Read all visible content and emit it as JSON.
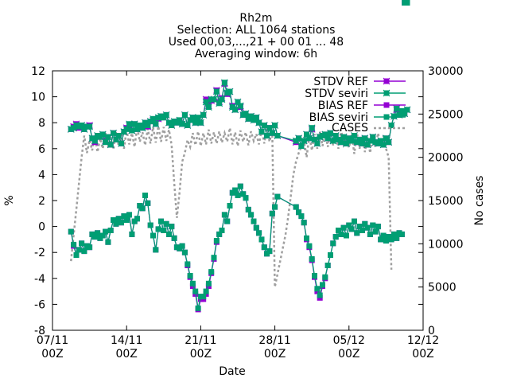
{
  "chart_data": {
    "type": "line",
    "title_lines": [
      "Rh2m",
      "Selection: ALL   1064 stations",
      "Used 00,03,...,21 + 00 01 ... 48",
      "Averaging window:  6h"
    ],
    "xlabel": "Date",
    "ylabel": "%",
    "y2label": "No cases",
    "xlim": [
      0,
      35
    ],
    "ylim": [
      -8,
      12
    ],
    "y2lim": [
      0,
      30000
    ],
    "x_ticks": [
      {
        "x": 0,
        "line1": "07/11",
        "line2": "00Z"
      },
      {
        "x": 7,
        "line1": "14/11",
        "line2": "00Z"
      },
      {
        "x": 14,
        "line1": "21/11",
        "line2": "00Z"
      },
      {
        "x": 21,
        "line1": "28/11",
        "line2": "00Z"
      },
      {
        "x": 28,
        "line1": "05/12",
        "line2": "00Z"
      },
      {
        "x": 35,
        "line1": "12/12",
        "line2": "00Z"
      }
    ],
    "y_ticks": [
      12,
      10,
      8,
      6,
      4,
      2,
      0,
      -2,
      -4,
      -6,
      -8
    ],
    "y2_ticks": [
      30000,
      25000,
      20000,
      15000,
      10000,
      5000,
      0
    ],
    "legend_position": "top-right",
    "colors": {
      "ref": "#9400d3",
      "seviri": "#009e73",
      "cases": "#a0a0a0"
    },
    "stdv_x": [
      1.75,
      2.0,
      2.25,
      2.5,
      2.75,
      3.0,
      3.25,
      3.5,
      3.75,
      4.0,
      4.25,
      4.5,
      4.75,
      5.0,
      5.25,
      5.5,
      5.75,
      6.0,
      6.25,
      6.5,
      6.75,
      7.0,
      7.25,
      7.5,
      7.75,
      8.0,
      8.25,
      8.5,
      8.75,
      9.0,
      9.25,
      9.5,
      9.75,
      10.0,
      10.25,
      10.5,
      10.75,
      11.0,
      11.25,
      11.5,
      11.75,
      12.0,
      12.25,
      12.5,
      12.75,
      13.0,
      13.25,
      13.5,
      13.75,
      14.0,
      14.25,
      14.5,
      14.75,
      15.0,
      15.25,
      15.5,
      15.75,
      16.0,
      16.25,
      16.5,
      16.75,
      17.0,
      17.25,
      17.5,
      17.75,
      18.0,
      18.25,
      18.5,
      18.75,
      19.0,
      19.25,
      19.5,
      19.75,
      20.0,
      20.25,
      20.5,
      20.75,
      21.0,
      21.25,
      23.0,
      23.25,
      23.5,
      23.75,
      24.0,
      24.25,
      24.5,
      24.75,
      25.0,
      25.25,
      25.5,
      25.75,
      26.0,
      26.25,
      26.5,
      26.75,
      27.0,
      27.25,
      27.5,
      27.75,
      28.0,
      28.25,
      28.5,
      28.75,
      29.0,
      29.25,
      29.5,
      29.75,
      30.0,
      30.25,
      30.5,
      30.75,
      31.0,
      31.25,
      31.5,
      31.75,
      32.0,
      32.25,
      32.5,
      32.75,
      33.0,
      33.25,
      33.5
    ],
    "stdv_ref": [
      7.5,
      7.7,
      7.9,
      7.6,
      7.8,
      7.5,
      7.7,
      7.8,
      6.8,
      6.5,
      7.0,
      6.9,
      7.1,
      6.6,
      6.9,
      6.3,
      7.2,
      6.7,
      7.0,
      6.4,
      7.3,
      7.6,
      7.8,
      7.4,
      7.9,
      7.5,
      7.8,
      7.6,
      8.0,
      7.7,
      8.1,
      8.2,
      7.9,
      8.3,
      8.5,
      8.4,
      8.6,
      8.0,
      7.8,
      8.1,
      8.0,
      8.1,
      7.9,
      8.6,
      7.8,
      8.2,
      8.4,
      8.0,
      8.3,
      8.0,
      8.6,
      9.8,
      9.3,
      9.7,
      9.8,
      10.5,
      9.6,
      9.9,
      11.0,
      10.2,
      10.4,
      9.3,
      9.0,
      9.6,
      9.2,
      8.6,
      8.7,
      8.3,
      8.5,
      8.2,
      8.4,
      8.0,
      7.3,
      7.8,
      7.0,
      7.6,
      7.2,
      7.8,
      7.0,
      6.5,
      6.8,
      6.2,
      6.6,
      7.1,
      6.8,
      7.5,
      6.7,
      6.4,
      6.9,
      7.0,
      7.1,
      6.8,
      7.2,
      6.6,
      7.0,
      6.7,
      6.5,
      6.9,
      6.4,
      6.8,
      6.6,
      7.0,
      6.5,
      6.7,
      6.4,
      6.8,
      6.3,
      6.6,
      6.9,
      6.5,
      6.4,
      6.6,
      6.3,
      6.8,
      6.5,
      7.8,
      8.5,
      9.0,
      8.6,
      8.9,
      8.7,
      9.0,
      8.8,
      9.0
    ],
    "stdv_seviri": [
      7.5,
      7.6,
      7.8,
      7.7,
      7.8,
      7.5,
      7.7,
      7.7,
      6.8,
      6.6,
      7.0,
      6.9,
      7.1,
      6.5,
      6.9,
      6.3,
      7.2,
      6.7,
      7.0,
      6.4,
      7.3,
      7.5,
      7.9,
      7.4,
      7.9,
      7.5,
      7.8,
      7.6,
      8.0,
      7.8,
      8.1,
      8.3,
      7.9,
      8.4,
      8.5,
      8.4,
      8.6,
      8.0,
      7.8,
      8.1,
      8.0,
      8.2,
      7.9,
      8.6,
      7.8,
      8.2,
      8.4,
      8.0,
      8.4,
      8.0,
      8.6,
      9.6,
      9.2,
      9.8,
      9.8,
      10.4,
      9.5,
      9.8,
      11.1,
      10.3,
      10.4,
      9.2,
      9.0,
      9.6,
      9.3,
      8.6,
      8.7,
      8.3,
      8.5,
      8.2,
      8.4,
      8.0,
      7.3,
      7.8,
      7.0,
      7.6,
      7.2,
      7.8,
      7.0,
      6.6,
      6.8,
      6.2,
      6.6,
      7.1,
      6.8,
      7.6,
      6.7,
      6.4,
      6.9,
      7.0,
      7.1,
      6.8,
      7.2,
      6.6,
      7.0,
      6.7,
      6.5,
      6.9,
      6.4,
      6.8,
      6.6,
      7.0,
      6.5,
      6.7,
      6.4,
      6.8,
      6.3,
      6.6,
      6.9,
      6.5,
      6.4,
      6.6,
      6.3,
      6.8,
      6.5,
      7.8,
      8.5,
      9.1,
      8.6,
      8.9,
      8.7,
      9.0,
      8.8,
      9.1
    ],
    "bias_x": [
      1.75,
      2.0,
      2.25,
      2.5,
      2.75,
      3.0,
      3.25,
      3.5,
      3.75,
      4.0,
      4.25,
      4.5,
      4.75,
      5.0,
      5.25,
      5.5,
      5.75,
      6.0,
      6.25,
      6.5,
      6.75,
      7.0,
      7.25,
      7.5,
      7.75,
      8.0,
      8.25,
      8.5,
      8.75,
      9.0,
      9.25,
      9.5,
      9.75,
      10.0,
      10.25,
      10.5,
      10.75,
      11.0,
      11.25,
      11.5,
      11.75,
      12.0,
      12.25,
      12.5,
      12.75,
      13.0,
      13.25,
      13.5,
      13.75,
      14.0,
      14.25,
      14.5,
      14.75,
      15.0,
      15.25,
      15.5,
      15.75,
      16.0,
      16.25,
      16.5,
      16.75,
      17.0,
      17.25,
      17.5,
      17.75,
      18.0,
      18.25,
      18.5,
      18.75,
      19.0,
      19.25,
      19.5,
      19.75,
      20.0,
      20.25,
      20.5,
      20.75,
      21.0,
      21.25,
      23.0,
      23.25,
      23.5,
      23.75,
      24.0,
      24.25,
      24.5,
      24.75,
      25.0,
      25.25,
      25.5,
      25.75,
      26.0,
      26.25,
      26.5,
      26.75,
      27.0,
      27.25,
      27.5,
      27.75,
      28.0,
      28.25,
      28.5,
      28.75,
      29.0,
      29.25,
      29.5,
      29.75,
      30.0,
      30.25,
      30.5,
      30.75,
      31.0,
      31.25,
      31.5,
      31.75,
      32.0,
      32.25,
      32.5,
      32.75,
      33.0,
      33.25,
      33.5
    ],
    "bias_ref": [
      -0.4,
      -1.5,
      -2.2,
      -1.8,
      -1.3,
      -1.9,
      -1.5,
      -1.6,
      -0.6,
      -0.8,
      -0.5,
      -0.9,
      -0.7,
      -0.4,
      -1.2,
      -0.3,
      0.5,
      0.2,
      0.6,
      0.3,
      0.8,
      0.5,
      0.9,
      -0.6,
      0.4,
      0.6,
      1.6,
      1.4,
      2.4,
      1.8,
      0.1,
      -0.7,
      -1.8,
      -0.2,
      0.4,
      -0.3,
      0.2,
      -0.6,
      0.0,
      -0.9,
      -1.6,
      -1.7,
      -1.5,
      -2.0,
      -3.0,
      -3.9,
      -4.6,
      -5.2,
      -6.4,
      -5.6,
      -5.6,
      -5.2,
      -4.6,
      -3.6,
      -2.5,
      -1.2,
      -0.6,
      -0.3,
      0.9,
      0.4,
      1.6,
      2.6,
      2.8,
      2.4,
      3.1,
      2.5,
      2.2,
      1.3,
      0.9,
      0.4,
      -0.1,
      -0.5,
      -1.0,
      -1.6,
      -2.1,
      -1.9,
      1.0,
      1.5,
      2.3,
      1.5,
      1.1,
      0.8,
      0.3,
      -1.0,
      -1.6,
      -2.6,
      -3.9,
      -5.0,
      -5.5,
      -4.6,
      -4.0,
      -3.0,
      -2.2,
      -1.3,
      -0.8,
      -0.3,
      -0.6,
      -0.1,
      -0.7,
      0.1,
      -0.2,
      0.4,
      -0.5,
      0.0,
      -0.3,
      0.2,
      -0.1,
      -0.6,
      0.1,
      -0.4,
      0.0,
      -1.0,
      -0.7,
      -1.1,
      -0.8,
      -1.0,
      -0.6,
      -0.9,
      -0.5,
      -0.6
    ],
    "bias_seviri": [
      -0.4,
      -1.4,
      -2.2,
      -1.8,
      -1.3,
      -1.9,
      -1.5,
      -1.6,
      -0.6,
      -0.8,
      -0.5,
      -0.9,
      -0.7,
      -0.4,
      -1.2,
      -0.3,
      0.5,
      0.2,
      0.6,
      0.3,
      0.8,
      0.5,
      0.9,
      -0.6,
      0.4,
      0.6,
      1.6,
      1.4,
      2.4,
      1.8,
      0.1,
      -0.7,
      -1.8,
      -0.2,
      0.4,
      -0.3,
      0.2,
      -0.6,
      0.0,
      -0.9,
      -1.6,
      -1.7,
      -1.5,
      -2.0,
      -2.9,
      -3.8,
      -4.4,
      -5.0,
      -6.3,
      -5.4,
      -5.4,
      -5.0,
      -4.4,
      -3.5,
      -2.4,
      -1.1,
      -0.6,
      -0.3,
      0.9,
      0.4,
      1.6,
      2.6,
      2.8,
      2.4,
      3.1,
      2.5,
      2.2,
      1.3,
      0.9,
      0.4,
      -0.1,
      -0.5,
      -1.0,
      -1.6,
      -2.1,
      -1.9,
      1.0,
      1.5,
      2.3,
      1.5,
      1.1,
      0.8,
      0.3,
      -0.9,
      -1.5,
      -2.5,
      -3.8,
      -4.8,
      -5.3,
      -4.5,
      -3.9,
      -3.0,
      -2.2,
      -1.3,
      -0.8,
      -0.3,
      -0.6,
      -0.1,
      -0.7,
      0.1,
      -0.2,
      0.4,
      -0.5,
      0.0,
      -0.3,
      0.2,
      -0.1,
      -0.6,
      0.1,
      -0.4,
      0.0,
      -1.0,
      -0.7,
      -1.1,
      -0.8,
      -1.0,
      -0.6,
      -0.9,
      -0.5,
      -0.6
    ],
    "cases_x": [
      1.75,
      2.0,
      2.25,
      2.5,
      2.75,
      3.0,
      3.25,
      3.5,
      3.75,
      4.0,
      4.25,
      4.5,
      4.75,
      5.0,
      5.25,
      5.5,
      5.75,
      6.0,
      6.25,
      6.5,
      6.75,
      7.0,
      7.25,
      7.5,
      7.75,
      8.0,
      8.25,
      8.5,
      8.75,
      9.0,
      9.25,
      9.5,
      9.75,
      10.0,
      10.25,
      10.5,
      10.75,
      11.0,
      11.25,
      11.5,
      11.75,
      12.0,
      12.25,
      12.5,
      12.75,
      13.0,
      13.25,
      13.5,
      13.75,
      14.0,
      14.25,
      14.5,
      14.75,
      15.0,
      15.25,
      15.5,
      15.75,
      16.0,
      16.25,
      16.5,
      16.75,
      17.0,
      17.25,
      17.5,
      17.75,
      18.0,
      18.25,
      18.5,
      18.75,
      19.0,
      19.25,
      19.5,
      19.75,
      20.0,
      20.25,
      20.5,
      20.75,
      21.0,
      21.25,
      21.5,
      21.75,
      22.0,
      22.25,
      22.5,
      22.75,
      23.0,
      23.25,
      23.5,
      23.75,
      24.0,
      24.25,
      24.5,
      24.75,
      25.0,
      25.25,
      25.5,
      25.75,
      26.0,
      26.25,
      26.5,
      26.75,
      27.0,
      27.25,
      27.5,
      27.75,
      28.0,
      28.25,
      28.5,
      28.75,
      29.0,
      29.25,
      29.5,
      29.75,
      30.0,
      30.25,
      30.5,
      30.75,
      31.0,
      31.25,
      31.5,
      31.75,
      32.0,
      32.25,
      32.5,
      32.75,
      33.0,
      33.25,
      33.5
    ],
    "cases": [
      8000,
      11000,
      14000,
      17000,
      20000,
      22500,
      20500,
      22000,
      20800,
      22500,
      20600,
      22200,
      21000,
      22800,
      21200,
      22300,
      20900,
      23000,
      21300,
      22600,
      21000,
      23200,
      21500,
      22800,
      21200,
      23500,
      21800,
      22900,
      21400,
      23300,
      21600,
      23500,
      21700,
      23600,
      21800,
      23500,
      21900,
      23200,
      21400,
      17000,
      13000,
      16000,
      19500,
      20500,
      22000,
      21200,
      22800,
      21400,
      23000,
      21300,
      22800,
      21500,
      23200,
      21600,
      22900,
      21600,
      23000,
      21700,
      22800,
      21800,
      23400,
      21500,
      22900,
      21300,
      23100,
      21800,
      22900,
      21400,
      23000,
      21900,
      22700,
      21500,
      23200,
      21600,
      23400,
      21800,
      23100,
      5000,
      6500,
      8000,
      9500,
      11000,
      13000,
      15500,
      18000,
      19500,
      20500,
      21200,
      22000,
      20000,
      22500,
      20800,
      22700,
      21000,
      23000,
      21300,
      22900,
      21200,
      23000,
      21400,
      22800,
      21000,
      23200,
      21500,
      22400,
      21100,
      22600,
      20400,
      22800,
      21000,
      22500,
      20600,
      22300,
      20500,
      22700,
      21100,
      22800,
      21200,
      22500,
      21000,
      20000,
      7000
    ]
  },
  "legend": {
    "stdv_ref": "STDV REF",
    "stdv_seviri": "STDV seviri",
    "bias_ref": "BIAS REF",
    "bias_seviri": "BIAS seviri",
    "cases": "CASES"
  }
}
